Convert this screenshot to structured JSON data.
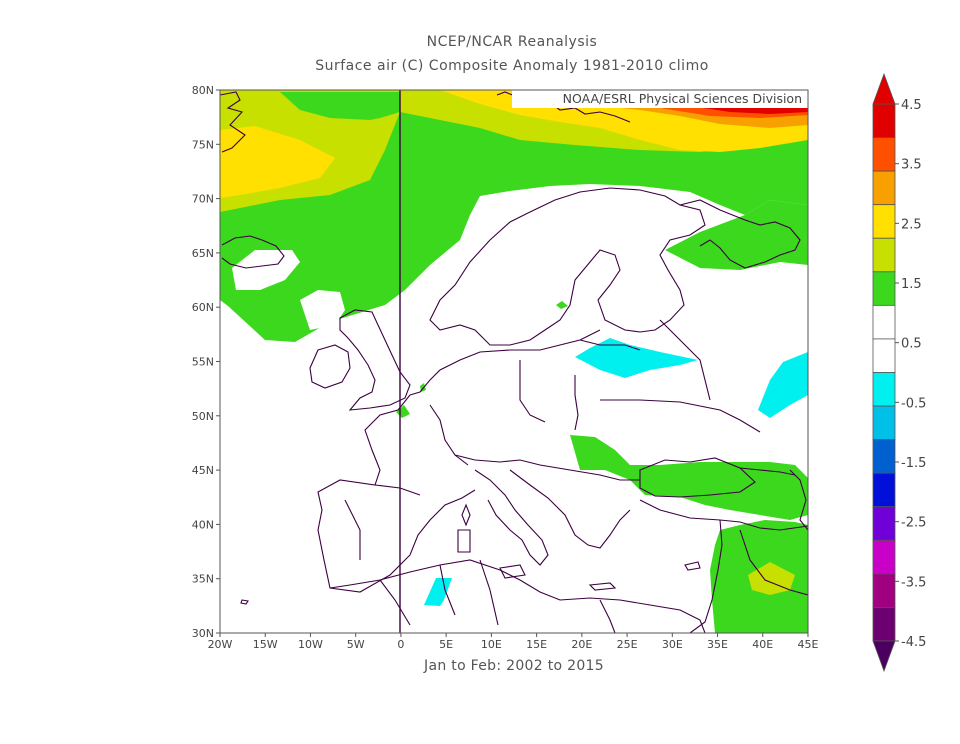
{
  "titles": {
    "line1": "NCEP/NCAR Reanalysis",
    "line2": "Surface air (C) Composite Anomaly 1981-2010 climo",
    "period": "Jan to Feb: 2002 to 2015",
    "credit": "NOAA/ESRL Physical Sciences Division"
  },
  "map": {
    "lon_ticks": [
      "20W",
      "15W",
      "10W",
      "5W",
      "0",
      "5E",
      "10E",
      "15E",
      "20E",
      "25E",
      "30E",
      "35E",
      "40E",
      "45E"
    ],
    "lat_ticks": [
      "30N",
      "35N",
      "40N",
      "45N",
      "50N",
      "55N",
      "60N",
      "65N",
      "70N",
      "75N",
      "80N"
    ],
    "lon_range": [
      -20,
      45
    ],
    "lat_range": [
      30,
      80
    ],
    "meridian_line_lon": 0
  },
  "colorbar": {
    "labels": [
      "4.5",
      "3.5",
      "2.5",
      "1.5",
      "0.5",
      "-0.5",
      "-1.5",
      "-2.5",
      "-3.5",
      "-4.5"
    ],
    "colors": [
      "#e00000",
      "#ff5000",
      "#f8a000",
      "#ffe000",
      "#c8e000",
      "#3cd81e",
      "#ffffff",
      "#ffffff",
      "#00f0f0",
      "#00c0e8",
      "#0060d0",
      "#0010d8",
      "#7000d8",
      "#c800c8",
      "#a00080",
      "#6c0070"
    ],
    "top_triangle": "#e00000",
    "bottom_triangle": "#4b0060"
  },
  "anomaly_colors": {
    "plus_0_5_to_1_5": "#3cd81e",
    "plus_1_5_to_2_5": "#c8e000",
    "plus_2_5_to_3_5": "#ffe000",
    "plus_3_5_to_4_5": "#f8a000",
    "plus_4_5_up": "#ff5000",
    "top": "#e00000",
    "minus_0_5_to_1_5": "#00f0f0",
    "coast": "#3c0040"
  }
}
